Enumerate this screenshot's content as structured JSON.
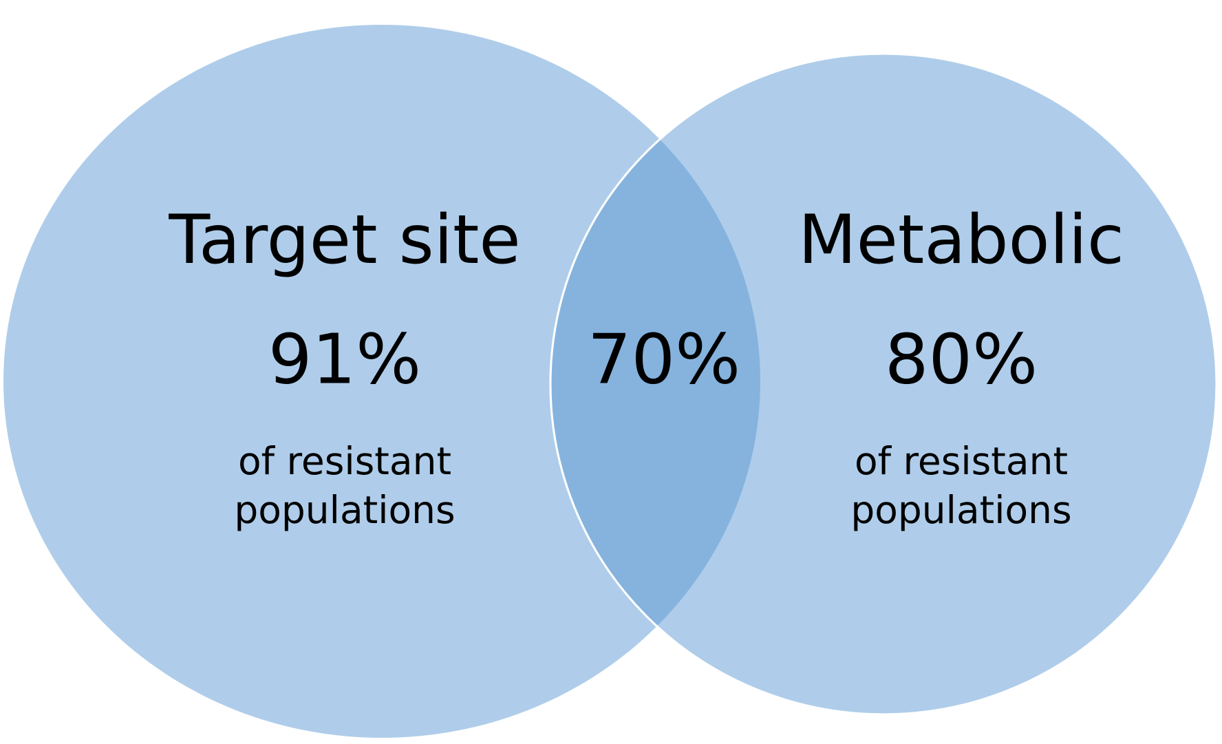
{
  "sets": [
    {
      "label": "Target site",
      "value_label": "91%",
      "note_lines": [
        "of resistant",
        "populations"
      ]
    },
    {
      "label": "Metabolic",
      "value_label": "80%",
      "note_lines": [
        "of resistant",
        "populations"
      ]
    }
  ],
  "overlap": {
    "value_label": "70%"
  }
}
